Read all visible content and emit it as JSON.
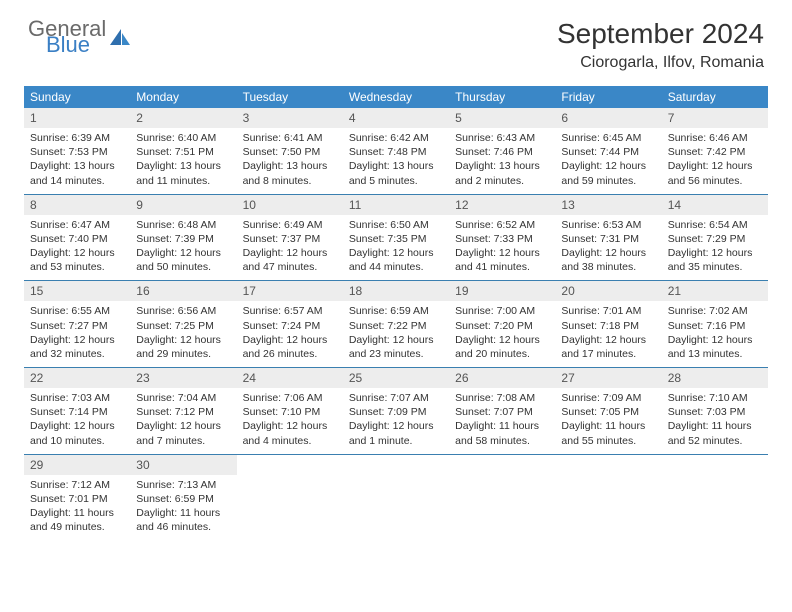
{
  "logo": {
    "general": "General",
    "blue": "Blue"
  },
  "title": "September 2024",
  "location": "Ciorogarla, Ilfov, Romania",
  "colors": {
    "header_bg": "#3a87c7",
    "header_text": "#ffffff",
    "daynum_bg": "#ededed",
    "border": "#3a7fb0",
    "logo_gray": "#6a6a6a",
    "logo_blue": "#3a7fc4"
  },
  "weekdays": [
    "Sunday",
    "Monday",
    "Tuesday",
    "Wednesday",
    "Thursday",
    "Friday",
    "Saturday"
  ],
  "weeks": [
    [
      {
        "day": "1",
        "sunrise": "Sunrise: 6:39 AM",
        "sunset": "Sunset: 7:53 PM",
        "daylight": "Daylight: 13 hours and 14 minutes."
      },
      {
        "day": "2",
        "sunrise": "Sunrise: 6:40 AM",
        "sunset": "Sunset: 7:51 PM",
        "daylight": "Daylight: 13 hours and 11 minutes."
      },
      {
        "day": "3",
        "sunrise": "Sunrise: 6:41 AM",
        "sunset": "Sunset: 7:50 PM",
        "daylight": "Daylight: 13 hours and 8 minutes."
      },
      {
        "day": "4",
        "sunrise": "Sunrise: 6:42 AM",
        "sunset": "Sunset: 7:48 PM",
        "daylight": "Daylight: 13 hours and 5 minutes."
      },
      {
        "day": "5",
        "sunrise": "Sunrise: 6:43 AM",
        "sunset": "Sunset: 7:46 PM",
        "daylight": "Daylight: 13 hours and 2 minutes."
      },
      {
        "day": "6",
        "sunrise": "Sunrise: 6:45 AM",
        "sunset": "Sunset: 7:44 PM",
        "daylight": "Daylight: 12 hours and 59 minutes."
      },
      {
        "day": "7",
        "sunrise": "Sunrise: 6:46 AM",
        "sunset": "Sunset: 7:42 PM",
        "daylight": "Daylight: 12 hours and 56 minutes."
      }
    ],
    [
      {
        "day": "8",
        "sunrise": "Sunrise: 6:47 AM",
        "sunset": "Sunset: 7:40 PM",
        "daylight": "Daylight: 12 hours and 53 minutes."
      },
      {
        "day": "9",
        "sunrise": "Sunrise: 6:48 AM",
        "sunset": "Sunset: 7:39 PM",
        "daylight": "Daylight: 12 hours and 50 minutes."
      },
      {
        "day": "10",
        "sunrise": "Sunrise: 6:49 AM",
        "sunset": "Sunset: 7:37 PM",
        "daylight": "Daylight: 12 hours and 47 minutes."
      },
      {
        "day": "11",
        "sunrise": "Sunrise: 6:50 AM",
        "sunset": "Sunset: 7:35 PM",
        "daylight": "Daylight: 12 hours and 44 minutes."
      },
      {
        "day": "12",
        "sunrise": "Sunrise: 6:52 AM",
        "sunset": "Sunset: 7:33 PM",
        "daylight": "Daylight: 12 hours and 41 minutes."
      },
      {
        "day": "13",
        "sunrise": "Sunrise: 6:53 AM",
        "sunset": "Sunset: 7:31 PM",
        "daylight": "Daylight: 12 hours and 38 minutes."
      },
      {
        "day": "14",
        "sunrise": "Sunrise: 6:54 AM",
        "sunset": "Sunset: 7:29 PM",
        "daylight": "Daylight: 12 hours and 35 minutes."
      }
    ],
    [
      {
        "day": "15",
        "sunrise": "Sunrise: 6:55 AM",
        "sunset": "Sunset: 7:27 PM",
        "daylight": "Daylight: 12 hours and 32 minutes."
      },
      {
        "day": "16",
        "sunrise": "Sunrise: 6:56 AM",
        "sunset": "Sunset: 7:25 PM",
        "daylight": "Daylight: 12 hours and 29 minutes."
      },
      {
        "day": "17",
        "sunrise": "Sunrise: 6:57 AM",
        "sunset": "Sunset: 7:24 PM",
        "daylight": "Daylight: 12 hours and 26 minutes."
      },
      {
        "day": "18",
        "sunrise": "Sunrise: 6:59 AM",
        "sunset": "Sunset: 7:22 PM",
        "daylight": "Daylight: 12 hours and 23 minutes."
      },
      {
        "day": "19",
        "sunrise": "Sunrise: 7:00 AM",
        "sunset": "Sunset: 7:20 PM",
        "daylight": "Daylight: 12 hours and 20 minutes."
      },
      {
        "day": "20",
        "sunrise": "Sunrise: 7:01 AM",
        "sunset": "Sunset: 7:18 PM",
        "daylight": "Daylight: 12 hours and 17 minutes."
      },
      {
        "day": "21",
        "sunrise": "Sunrise: 7:02 AM",
        "sunset": "Sunset: 7:16 PM",
        "daylight": "Daylight: 12 hours and 13 minutes."
      }
    ],
    [
      {
        "day": "22",
        "sunrise": "Sunrise: 7:03 AM",
        "sunset": "Sunset: 7:14 PM",
        "daylight": "Daylight: 12 hours and 10 minutes."
      },
      {
        "day": "23",
        "sunrise": "Sunrise: 7:04 AM",
        "sunset": "Sunset: 7:12 PM",
        "daylight": "Daylight: 12 hours and 7 minutes."
      },
      {
        "day": "24",
        "sunrise": "Sunrise: 7:06 AM",
        "sunset": "Sunset: 7:10 PM",
        "daylight": "Daylight: 12 hours and 4 minutes."
      },
      {
        "day": "25",
        "sunrise": "Sunrise: 7:07 AM",
        "sunset": "Sunset: 7:09 PM",
        "daylight": "Daylight: 12 hours and 1 minute."
      },
      {
        "day": "26",
        "sunrise": "Sunrise: 7:08 AM",
        "sunset": "Sunset: 7:07 PM",
        "daylight": "Daylight: 11 hours and 58 minutes."
      },
      {
        "day": "27",
        "sunrise": "Sunrise: 7:09 AM",
        "sunset": "Sunset: 7:05 PM",
        "daylight": "Daylight: 11 hours and 55 minutes."
      },
      {
        "day": "28",
        "sunrise": "Sunrise: 7:10 AM",
        "sunset": "Sunset: 7:03 PM",
        "daylight": "Daylight: 11 hours and 52 minutes."
      }
    ],
    [
      {
        "day": "29",
        "sunrise": "Sunrise: 7:12 AM",
        "sunset": "Sunset: 7:01 PM",
        "daylight": "Daylight: 11 hours and 49 minutes."
      },
      {
        "day": "30",
        "sunrise": "Sunrise: 7:13 AM",
        "sunset": "Sunset: 6:59 PM",
        "daylight": "Daylight: 11 hours and 46 minutes."
      },
      null,
      null,
      null,
      null,
      null
    ]
  ]
}
